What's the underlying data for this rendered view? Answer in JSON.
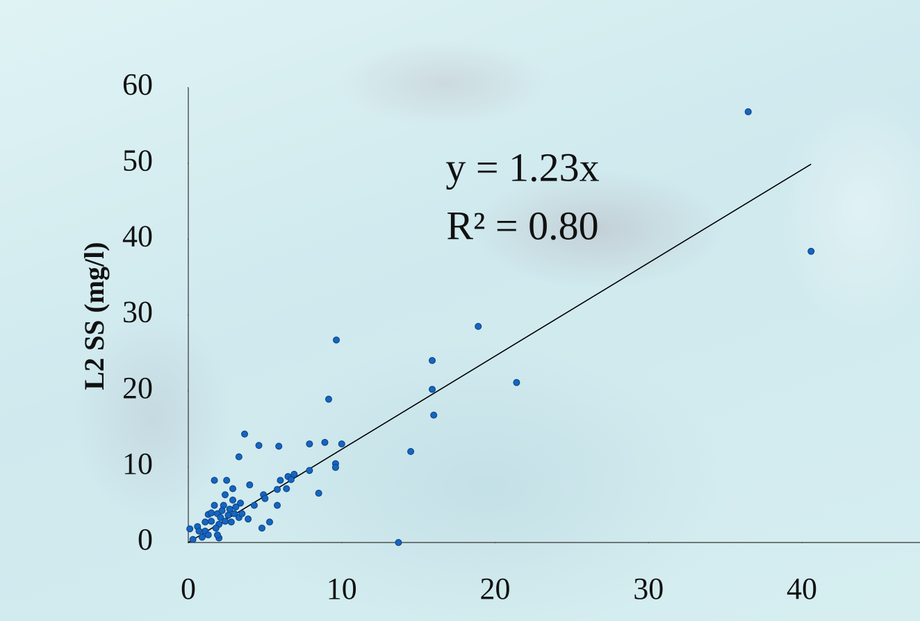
{
  "chart_data": {
    "type": "scatter",
    "y_label": "L2 SS (mg/l)",
    "annotations": [
      "y = 1.23x",
      "R² = 0.80"
    ],
    "color": "#1565c0",
    "xlim": [
      0,
      47.7
    ],
    "ylim": [
      0,
      60
    ],
    "xticks": [
      0,
      10,
      20,
      30,
      40
    ],
    "yticks": [
      0,
      10,
      20,
      30,
      40,
      50,
      60
    ],
    "x": [
      36.5,
      40.6,
      18.9,
      9.65,
      15.9,
      21.4,
      15.9,
      9.15,
      16.0,
      3.67,
      4.6,
      5.9,
      7.9,
      8.9,
      10.0,
      14.5,
      3.3,
      9.6,
      9.6,
      7.9,
      6.9,
      6.5,
      6.0,
      1.7,
      2.5,
      6.7,
      6.4,
      5.8,
      4.0,
      2.9,
      8.5,
      4.9,
      5.0,
      4.3,
      5.8,
      3.4,
      3.9,
      5.3,
      4.8,
      13.7,
      0.1,
      0.6,
      1.1,
      1.3,
      1.5,
      1.9,
      2.1,
      2.3,
      2.4,
      2.7,
      2.9,
      3.0,
      3.3,
      3.5,
      2.0,
      1.8,
      2.0,
      1.3,
      0.9,
      0.3,
      2.4,
      2.8,
      1.5,
      1.1,
      3.1,
      2.2,
      1.7,
      2.6,
      1.9,
      0.7
    ],
    "y": [
      56.8,
      38.4,
      28.5,
      26.7,
      24.0,
      21.1,
      20.2,
      18.9,
      16.8,
      14.3,
      12.8,
      12.7,
      13.0,
      13.2,
      13.0,
      12.0,
      11.3,
      10.4,
      9.9,
      9.5,
      9.0,
      8.7,
      8.2,
      8.2,
      8.2,
      8.3,
      7.1,
      7.0,
      7.6,
      7.1,
      6.5,
      6.3,
      5.8,
      4.9,
      4.9,
      5.2,
      3.1,
      2.7,
      1.9,
      0,
      1.8,
      2.1,
      1.5,
      3.7,
      3.9,
      3.8,
      3.3,
      4.9,
      6.3,
      4.4,
      5.6,
      3.8,
      3.3,
      3.8,
      2.4,
      1.9,
      0.6,
      1.0,
      0.7,
      0.4,
      2.8,
      2.7,
      2.8,
      2.7,
      4.7,
      4.2,
      4.9,
      3.6,
      1.0,
      1.5
    ],
    "trendline": {
      "x": [
        0,
        40.6
      ],
      "y": [
        0,
        49.9
      ],
      "color": "#000000"
    }
  }
}
